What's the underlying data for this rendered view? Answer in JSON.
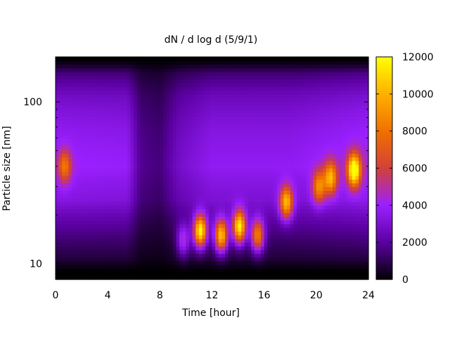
{
  "chart_data": {
    "type": "heatmap",
    "title": "dN / d log d (5/9/1)",
    "xlabel": "Time [hour]",
    "ylabel": "Particle size [nm]",
    "xlim": [
      0,
      24
    ],
    "ylim": [
      8,
      190
    ],
    "yscale": "log",
    "x_ticks": [
      0,
      4,
      8,
      12,
      16,
      20,
      24
    ],
    "y_ticks": [
      10,
      100
    ],
    "colorbar": {
      "range": [
        0,
        12000
      ],
      "ticks": [
        0,
        2000,
        4000,
        6000,
        8000,
        10000,
        12000
      ],
      "palette": "gnuplot",
      "colors": [
        "#000000",
        "#5a00a0",
        "#9a20ff",
        "#d2403a",
        "#f07000",
        "#ffb000",
        "#ffff00"
      ]
    },
    "background": {
      "size_scale": [
        {
          "size": 9,
          "value": 0
        },
        {
          "size": 11,
          "value": 700
        },
        {
          "size": 16,
          "value": 1500
        },
        {
          "size": 25,
          "value": 2800
        },
        {
          "size": 40,
          "value": 3400
        },
        {
          "size": 70,
          "value": 3000
        },
        {
          "size": 110,
          "value": 2300
        },
        {
          "size": 150,
          "value": 1300
        },
        {
          "size": 170,
          "value": 400
        },
        {
          "size": 185,
          "value": 0
        }
      ],
      "time_scale": [
        {
          "time": 0,
          "factor": 1.2
        },
        {
          "time": 5.5,
          "factor": 1.15
        },
        {
          "time": 6.5,
          "factor": 0.55
        },
        {
          "time": 8,
          "factor": 0.45
        },
        {
          "time": 9.5,
          "factor": 0.85
        },
        {
          "time": 12,
          "factor": 1.1
        },
        {
          "time": 18,
          "factor": 1.1
        },
        {
          "time": 24,
          "factor": 1.3
        }
      ]
    },
    "events": [
      {
        "time": 11.1,
        "size": 16,
        "value": 10500
      },
      {
        "time": 12.7,
        "size": 15,
        "value": 9000
      },
      {
        "time": 14.1,
        "size": 17,
        "value": 10000
      },
      {
        "time": 15.5,
        "size": 15,
        "value": 7000
      },
      {
        "time": 17.7,
        "size": 24,
        "value": 7500
      },
      {
        "time": 20.2,
        "size": 30,
        "value": 5500
      },
      {
        "time": 21.1,
        "size": 34,
        "value": 6500
      },
      {
        "time": 22.9,
        "size": 38,
        "value": 9500
      },
      {
        "time": 0.7,
        "size": 40,
        "value": 4300
      },
      {
        "time": 9.8,
        "size": 14,
        "value": 3500
      }
    ]
  }
}
